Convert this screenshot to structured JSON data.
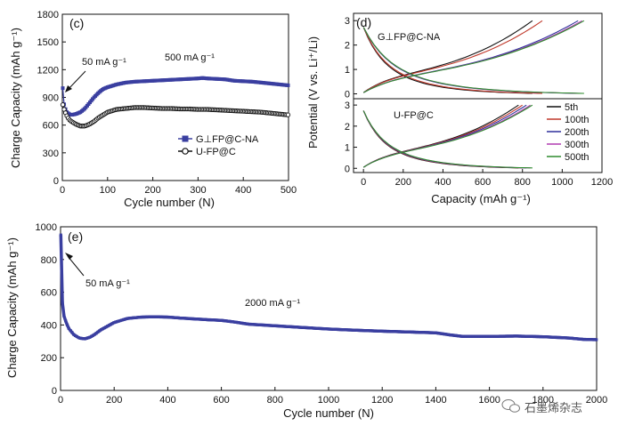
{
  "watermark": "石墨烯杂志",
  "watermark_icon": "wechat-icon",
  "chart_data": [
    {
      "id": "c",
      "panel_label": "(c)",
      "type": "scatter",
      "title": "",
      "xlabel": "Cycle number (N)",
      "ylabel": "Charge Capacity (mAh g⁻¹)",
      "xlim": [
        0,
        500
      ],
      "ylim": [
        0,
        1800
      ],
      "xticks": [
        0,
        100,
        200,
        300,
        400,
        500
      ],
      "yticks": [
        0,
        300,
        600,
        900,
        1200,
        1500,
        1800
      ],
      "annotations": [
        "50 mA g⁻¹",
        "500 mA g⁻¹"
      ],
      "legend_position": "center-right",
      "series": [
        {
          "name": "G⊥FP@C-NA",
          "color": "#3a3fa0",
          "marker": "filled-square",
          "x": [
            1,
            3,
            5,
            8,
            10,
            15,
            20,
            30,
            40,
            50,
            60,
            70,
            80,
            90,
            100,
            120,
            140,
            160,
            180,
            200,
            220,
            240,
            260,
            280,
            300,
            310,
            320,
            340,
            360,
            380,
            400,
            420,
            440,
            460,
            480,
            500
          ],
          "y": [
            1000,
            850,
            800,
            760,
            740,
            720,
            710,
            720,
            740,
            780,
            840,
            900,
            950,
            990,
            1010,
            1040,
            1060,
            1070,
            1075,
            1080,
            1085,
            1090,
            1095,
            1100,
            1105,
            1110,
            1105,
            1100,
            1095,
            1080,
            1075,
            1070,
            1060,
            1050,
            1040,
            1030
          ]
        },
        {
          "name": "U-FP@C",
          "color": "#111111",
          "marker": "open-circle",
          "x": [
            1,
            3,
            5,
            8,
            10,
            15,
            20,
            30,
            40,
            50,
            60,
            70,
            80,
            90,
            100,
            120,
            140,
            160,
            180,
            200,
            220,
            240,
            260,
            280,
            300,
            320,
            340,
            360,
            380,
            400,
            420,
            440,
            460,
            480,
            500
          ],
          "y": [
            820,
            780,
            760,
            720,
            700,
            660,
            640,
            610,
            590,
            590,
            610,
            640,
            680,
            710,
            740,
            770,
            780,
            790,
            790,
            785,
            780,
            780,
            775,
            775,
            770,
            770,
            765,
            760,
            755,
            750,
            745,
            740,
            730,
            720,
            710
          ]
        }
      ]
    },
    {
      "id": "d",
      "panel_label": "(d)",
      "type": "line",
      "title": "",
      "xlabel": "Capacity (mAh g⁻¹)",
      "ylabel": "Potential (V vs. Li⁺/Li)",
      "xlim": [
        -50,
        1200
      ],
      "xticks": [
        0,
        200,
        400,
        600,
        800,
        1000,
        1200
      ],
      "yticks": [
        0,
        1,
        2,
        3
      ],
      "legend_position": "right",
      "cycles": [
        {
          "name": "5th",
          "color": "#111111"
        },
        {
          "name": "100th",
          "color": "#c0392b"
        },
        {
          "name": "200th",
          "color": "#2e2f9a"
        },
        {
          "name": "300th",
          "color": "#b03ab0"
        },
        {
          "name": "500th",
          "color": "#2e8b2e"
        }
      ],
      "subplots": [
        {
          "label": "G⊥FP@C-NA",
          "label_color": "#2e2f9a",
          "ylim": [
            -0.2,
            3.3
          ],
          "curves": [
            {
              "cycle": "5th",
              "cap_max": 850
            },
            {
              "cycle": "100th",
              "cap_max": 900
            },
            {
              "cycle": "200th",
              "cap_max": 1080
            },
            {
              "cycle": "300th",
              "cap_max": 1100
            },
            {
              "cycle": "500th",
              "cap_max": 1110
            }
          ]
        },
        {
          "label": "U-FP@C",
          "label_color": "#111111",
          "ylim": [
            -0.2,
            3.3
          ],
          "curves": [
            {
              "cycle": "5th",
              "cap_max": 780
            },
            {
              "cycle": "100th",
              "cap_max": 800
            },
            {
              "cycle": "200th",
              "cap_max": 820
            },
            {
              "cycle": "300th",
              "cap_max": 840
            },
            {
              "cycle": "500th",
              "cap_max": 850
            }
          ]
        }
      ]
    },
    {
      "id": "e",
      "panel_label": "(e)",
      "type": "scatter",
      "title": "",
      "xlabel": "Cycle number (N)",
      "ylabel": "Charge Capacity (mAh g⁻¹)",
      "xlim": [
        0,
        2000
      ],
      "ylim": [
        0,
        1000
      ],
      "xticks": [
        0,
        200,
        400,
        600,
        800,
        1000,
        1200,
        1400,
        1600,
        1800,
        2000
      ],
      "yticks": [
        0,
        200,
        400,
        600,
        800,
        1000
      ],
      "annotations": [
        "50 mA g⁻¹",
        "2000 mA g⁻¹"
      ],
      "series": [
        {
          "name": "",
          "color": "#3a3fa0",
          "marker": "filled-square",
          "x": [
            1,
            3,
            5,
            8,
            12,
            20,
            30,
            50,
            70,
            90,
            110,
            130,
            150,
            200,
            250,
            300,
            350,
            400,
            450,
            500,
            550,
            600,
            650,
            700,
            800,
            900,
            1000,
            1100,
            1200,
            1300,
            1400,
            1450,
            1500,
            1600,
            1700,
            1800,
            1900,
            1950,
            2000
          ],
          "y": [
            950,
            800,
            600,
            500,
            460,
            420,
            380,
            340,
            320,
            315,
            325,
            345,
            370,
            415,
            440,
            448,
            450,
            448,
            442,
            437,
            432,
            428,
            418,
            405,
            395,
            385,
            375,
            368,
            362,
            357,
            352,
            340,
            330,
            330,
            332,
            328,
            320,
            312,
            310
          ]
        }
      ]
    }
  ]
}
